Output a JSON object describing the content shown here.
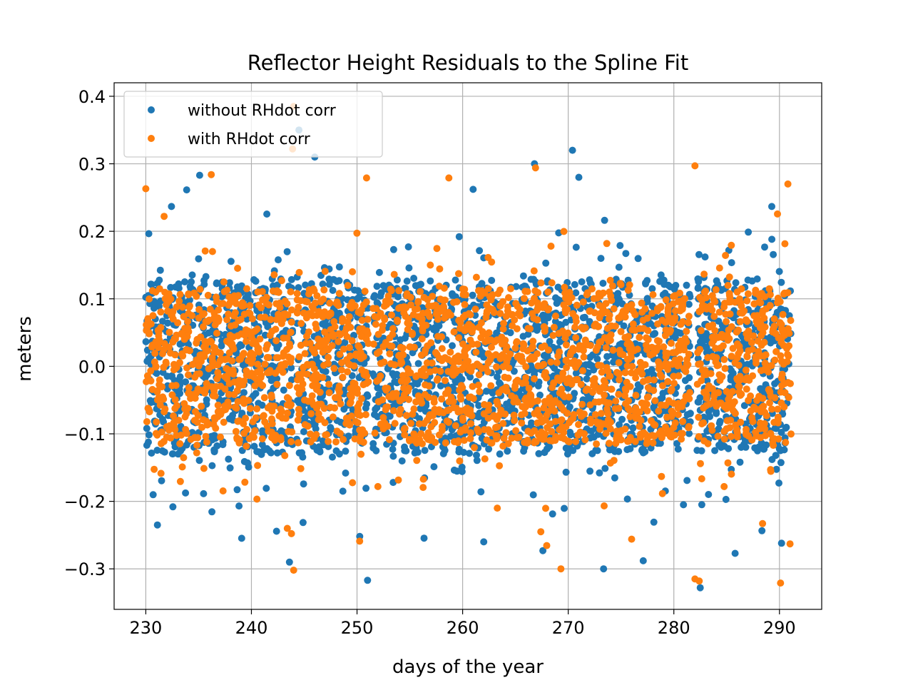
{
  "chart_data": {
    "type": "scatter",
    "title": "Reflector Height Residuals to the Spline Fit",
    "xlabel": "days of the year",
    "ylabel": "meters",
    "xlim": [
      227,
      294
    ],
    "ylim": [
      -0.36,
      0.42
    ],
    "xticks": [
      230,
      240,
      250,
      260,
      270,
      280,
      290
    ],
    "xtick_labels": [
      "230",
      "240",
      "250",
      "260",
      "270",
      "280",
      "290"
    ],
    "yticks": [
      -0.3,
      -0.2,
      -0.1,
      0.0,
      0.1,
      0.2,
      0.3,
      0.4
    ],
    "ytick_labels": [
      "−0.3",
      "−0.2",
      "−0.1",
      "0.0",
      "0.1",
      "0.2",
      "0.3",
      "0.4"
    ],
    "grid": true,
    "legend_position": "top-left",
    "series": [
      {
        "name": "without RHdot corr",
        "color": "#1f77b4",
        "segments": [
          [
            230,
            243.9
          ],
          [
            244.3,
            251.1
          ],
          [
            251.5,
            281.6
          ],
          [
            282.2,
            291.1
          ]
        ],
        "spread": 0.11,
        "outliers": [
          [
            244.5,
            0.35
          ],
          [
            246,
            0.31
          ],
          [
            251,
            -0.317
          ],
          [
            270.4,
            0.32
          ],
          [
            243.6,
            -0.29
          ],
          [
            231.1,
            -0.235
          ],
          [
            267.6,
            -0.273
          ],
          [
            277.1,
            -0.288
          ],
          [
            282.5,
            -0.328
          ],
          [
            285.8,
            -0.277
          ],
          [
            271,
            0.28
          ],
          [
            266.8,
            0.3
          ],
          [
            235.1,
            0.283
          ],
          [
            290.2,
            -0.262
          ],
          [
            262,
            -0.26
          ]
        ]
      },
      {
        "name": "with RHdot corr",
        "color": "#ff7f0e",
        "segments": [
          [
            230,
            243.9
          ],
          [
            244.3,
            251.1
          ],
          [
            251.5,
            281.6
          ],
          [
            282.2,
            291.1
          ]
        ],
        "spread": 0.095,
        "outliers": [
          [
            244,
            0.385
          ],
          [
            243.9,
            0.322
          ],
          [
            244,
            -0.302
          ],
          [
            282,
            -0.315
          ],
          [
            282.4,
            -0.318
          ],
          [
            290.1,
            -0.321
          ],
          [
            230,
            0.263
          ],
          [
            236.2,
            0.284
          ],
          [
            250.9,
            0.279
          ],
          [
            258.7,
            0.279
          ],
          [
            266.9,
            0.294
          ],
          [
            282,
            0.297
          ],
          [
            290.8,
            0.27
          ],
          [
            243.4,
            -0.24
          ],
          [
            276,
            -0.256
          ],
          [
            291,
            -0.263
          ],
          [
            267.4,
            -0.245
          ],
          [
            288.4,
            -0.233
          ]
        ]
      }
    ]
  }
}
